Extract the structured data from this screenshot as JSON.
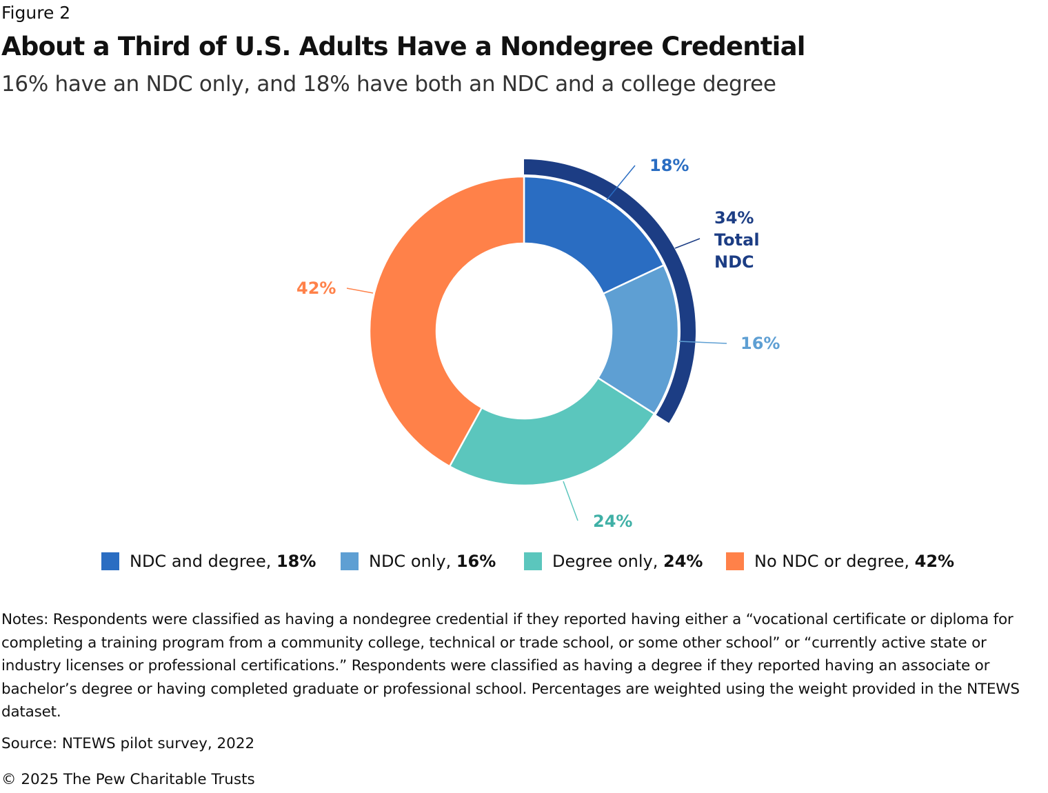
{
  "figure_label": "Figure 2",
  "chart_data": {
    "type": "pie",
    "title": "About a Third of U.S. Adults Have a Nondegree Credential",
    "subtitle": "16% have an NDC only, and 18% have both an NDC and a college degree",
    "slices": [
      {
        "name": "NDC and degree",
        "value": 18,
        "label": "18%",
        "color": "#2a6dc2"
      },
      {
        "name": "NDC only",
        "value": 16,
        "label": "16%",
        "color": "#5e9fd3"
      },
      {
        "name": "Degree only",
        "value": 24,
        "label": "24%",
        "color": "#5bc6bd"
      },
      {
        "name": "No NDC or degree",
        "value": 42,
        "label": "42%",
        "color": "#ff8149"
      }
    ],
    "outer_ring": {
      "value": 34,
      "label_value": "34%",
      "label_line1": "Total",
      "label_line2": "NDC",
      "color": "#1c3d84"
    },
    "legend": [
      {
        "text": "NDC and degree, ",
        "bold": "18%"
      },
      {
        "text": "NDC only, ",
        "bold": "16%"
      },
      {
        "text": "Degree only, ",
        "bold": "24%"
      },
      {
        "text": "No NDC or degree, ",
        "bold": "42%"
      }
    ],
    "legend_position": "bottom"
  },
  "notes": "Notes: Respondents were classified as having a nondegree credential if they reported having either a “vocational certificate or diploma for completing a training program from a community college, technical or trade school, or some other school” or “currently active state or industry licenses or professional certifications.” Respondents were classified as having a degree if they reported having an associate or bachelor’s degree or having completed graduate or professional school. Percentages are weighted using the weight provided in the NTEWS dataset.",
  "source": "Source: NTEWS pilot survey, 2022",
  "copyright": "© 2025 The Pew Charitable Trusts"
}
